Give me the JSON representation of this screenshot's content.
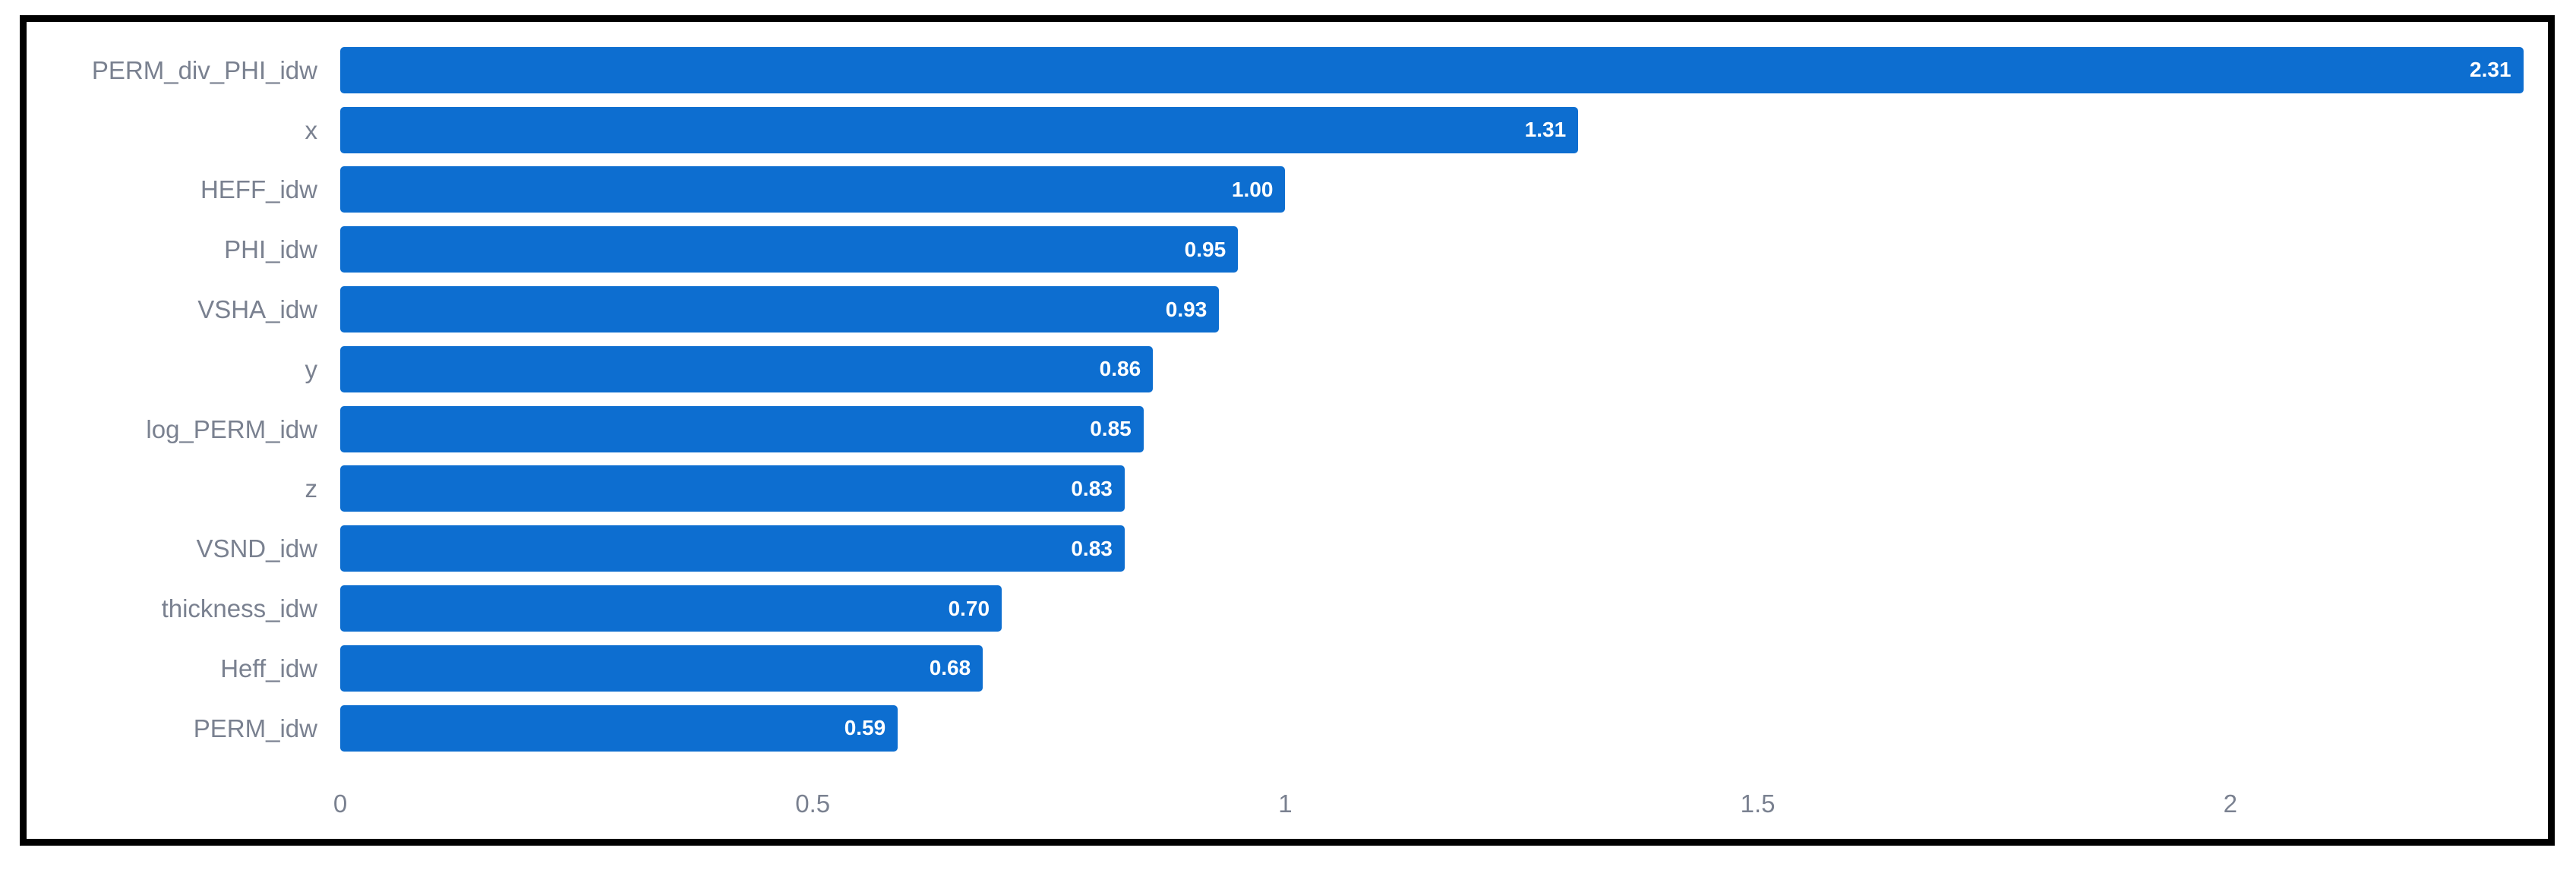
{
  "chart_data": {
    "type": "bar",
    "orientation": "horizontal",
    "title": "",
    "xlabel": "",
    "ylabel": "",
    "grid": false,
    "legend_position": "none",
    "categories": [
      "PERM_div_PHI_idw",
      "x",
      "HEFF_idw",
      "PHI_idw",
      "VSHA_idw",
      "y",
      "log_PERM_idw",
      "z",
      "VSND_idw",
      "thickness_idw",
      "Heff_idw",
      "PERM_idw"
    ],
    "values": [
      2.31,
      1.31,
      1.0,
      0.95,
      0.93,
      0.86,
      0.85,
      0.83,
      0.83,
      0.7,
      0.68,
      0.59
    ],
    "value_labels": [
      "2.31",
      "1.31",
      "1.00",
      "0.95",
      "0.93",
      "0.86",
      "0.85",
      "0.83",
      "0.83",
      "0.70",
      "0.68",
      "0.59"
    ],
    "x_ticks": [
      0,
      0.5,
      1,
      1.5,
      2
    ],
    "x_tick_labels": [
      "0",
      "0.5",
      "1",
      "1.5",
      "2"
    ],
    "xlim": [
      0,
      2.32
    ]
  },
  "colors": {
    "bar": "#0d6ed0",
    "category_label": "#7a8190",
    "tick_label": "#7a8190",
    "value_label": "#ffffff",
    "frame_border": "#000000",
    "background": "#ffffff"
  }
}
